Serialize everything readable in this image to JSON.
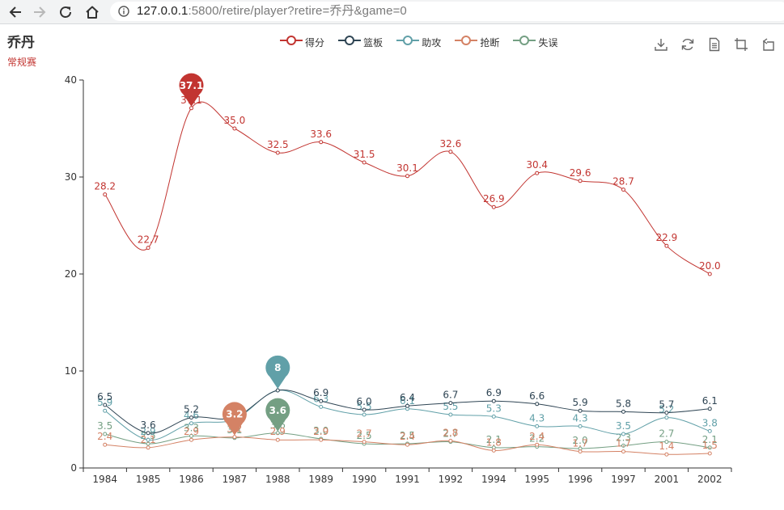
{
  "browser": {
    "url_host": "127.0.0.1",
    "url_rest": ":5800/retire/player?retire=乔丹&game=0"
  },
  "chart_title": "乔丹",
  "chart_subtitle": "常规赛",
  "toolbox": [
    "save-as-image",
    "restore",
    "data-view",
    "zoom",
    "zoom-reset"
  ],
  "chart_data": {
    "type": "line",
    "smooth": true,
    "title": "乔丹",
    "subtitle": "常规赛",
    "categories": [
      "1984",
      "1985",
      "1986",
      "1987",
      "1988",
      "1989",
      "1990",
      "1991",
      "1992",
      "1994",
      "1995",
      "1996",
      "1997",
      "2001",
      "2002"
    ],
    "ylim": [
      0,
      40
    ],
    "yticks": [
      "0",
      "10",
      "20",
      "30",
      "40"
    ],
    "legend_position": "top-center",
    "series": [
      {
        "name": "得分",
        "color": "#c23531",
        "values": [
          28.2,
          22.7,
          37.1,
          35.0,
          32.5,
          33.6,
          31.5,
          30.1,
          32.6,
          26.9,
          30.4,
          29.6,
          28.7,
          22.9,
          20.0
        ],
        "labels": [
          "28.2",
          "22.7",
          "37.1",
          "35.0",
          "32.5",
          "33.6",
          "31.5",
          "30.1",
          "32.6",
          "26.9",
          "30.4",
          "29.6",
          "28.7",
          "22.9",
          "20.0"
        ],
        "max_pin": {
          "index": 2,
          "label": "37.1"
        }
      },
      {
        "name": "篮板",
        "color": "#2f4554",
        "values": [
          6.5,
          3.6,
          5.2,
          5.2,
          8.0,
          6.9,
          6.0,
          6.4,
          6.7,
          6.9,
          6.6,
          5.9,
          5.8,
          5.7,
          6.1
        ],
        "labels": [
          "6.5",
          "3.6",
          "5.2",
          "5.2",
          "8",
          "6.9",
          "6.0",
          "6.4",
          "6.7",
          "6.9",
          "6.6",
          "5.9",
          "5.8",
          "5.7",
          "6.1"
        ]
      },
      {
        "name": "助攻",
        "color": "#61a0a8",
        "values": [
          5.9,
          2.9,
          4.6,
          5.0,
          8.0,
          6.3,
          5.5,
          6.1,
          5.5,
          5.3,
          4.3,
          4.3,
          3.5,
          5.2,
          3.8
        ],
        "labels": [
          "5.9",
          "2.9",
          "4.6",
          "5.0",
          "8",
          "6.3",
          "5.5",
          "6.1",
          "5.5",
          "5.3",
          "4.3",
          "4.3",
          "3.5",
          "5.2",
          "3.8"
        ],
        "max_pin": {
          "index": 4,
          "label": "8"
        }
      },
      {
        "name": "抢断",
        "color": "#d48265",
        "values": [
          2.4,
          2.1,
          2.9,
          3.2,
          2.9,
          2.9,
          2.7,
          2.4,
          2.8,
          1.8,
          2.4,
          1.7,
          1.7,
          1.4,
          1.5
        ],
        "labels": [
          "2.4",
          "2.1",
          "2.9",
          "3.2",
          "2.9",
          "2.9",
          "2.7",
          "2.4",
          "2.8",
          "1.8",
          "2.4",
          "1.7",
          "1.7",
          "1.4",
          "1.5"
        ],
        "max_pin": {
          "index": 3,
          "label": "3.2"
        }
      },
      {
        "name": "失误",
        "color": "#749f83",
        "values": [
          3.5,
          2.5,
          3.3,
          3.1,
          3.6,
          3.0,
          2.5,
          2.5,
          2.7,
          2.1,
          2.2,
          2.0,
          2.3,
          2.7,
          2.1
        ],
        "labels": [
          "3.5",
          "2.5",
          "3.3",
          "3.1",
          "3.6",
          "3.0",
          "2.5",
          "2.5",
          "2.7",
          "2.1",
          "2.2",
          "2.0",
          "2.3",
          "2.7",
          "2.1"
        ],
        "max_pin": {
          "index": 4,
          "label": "3.6"
        }
      }
    ]
  }
}
